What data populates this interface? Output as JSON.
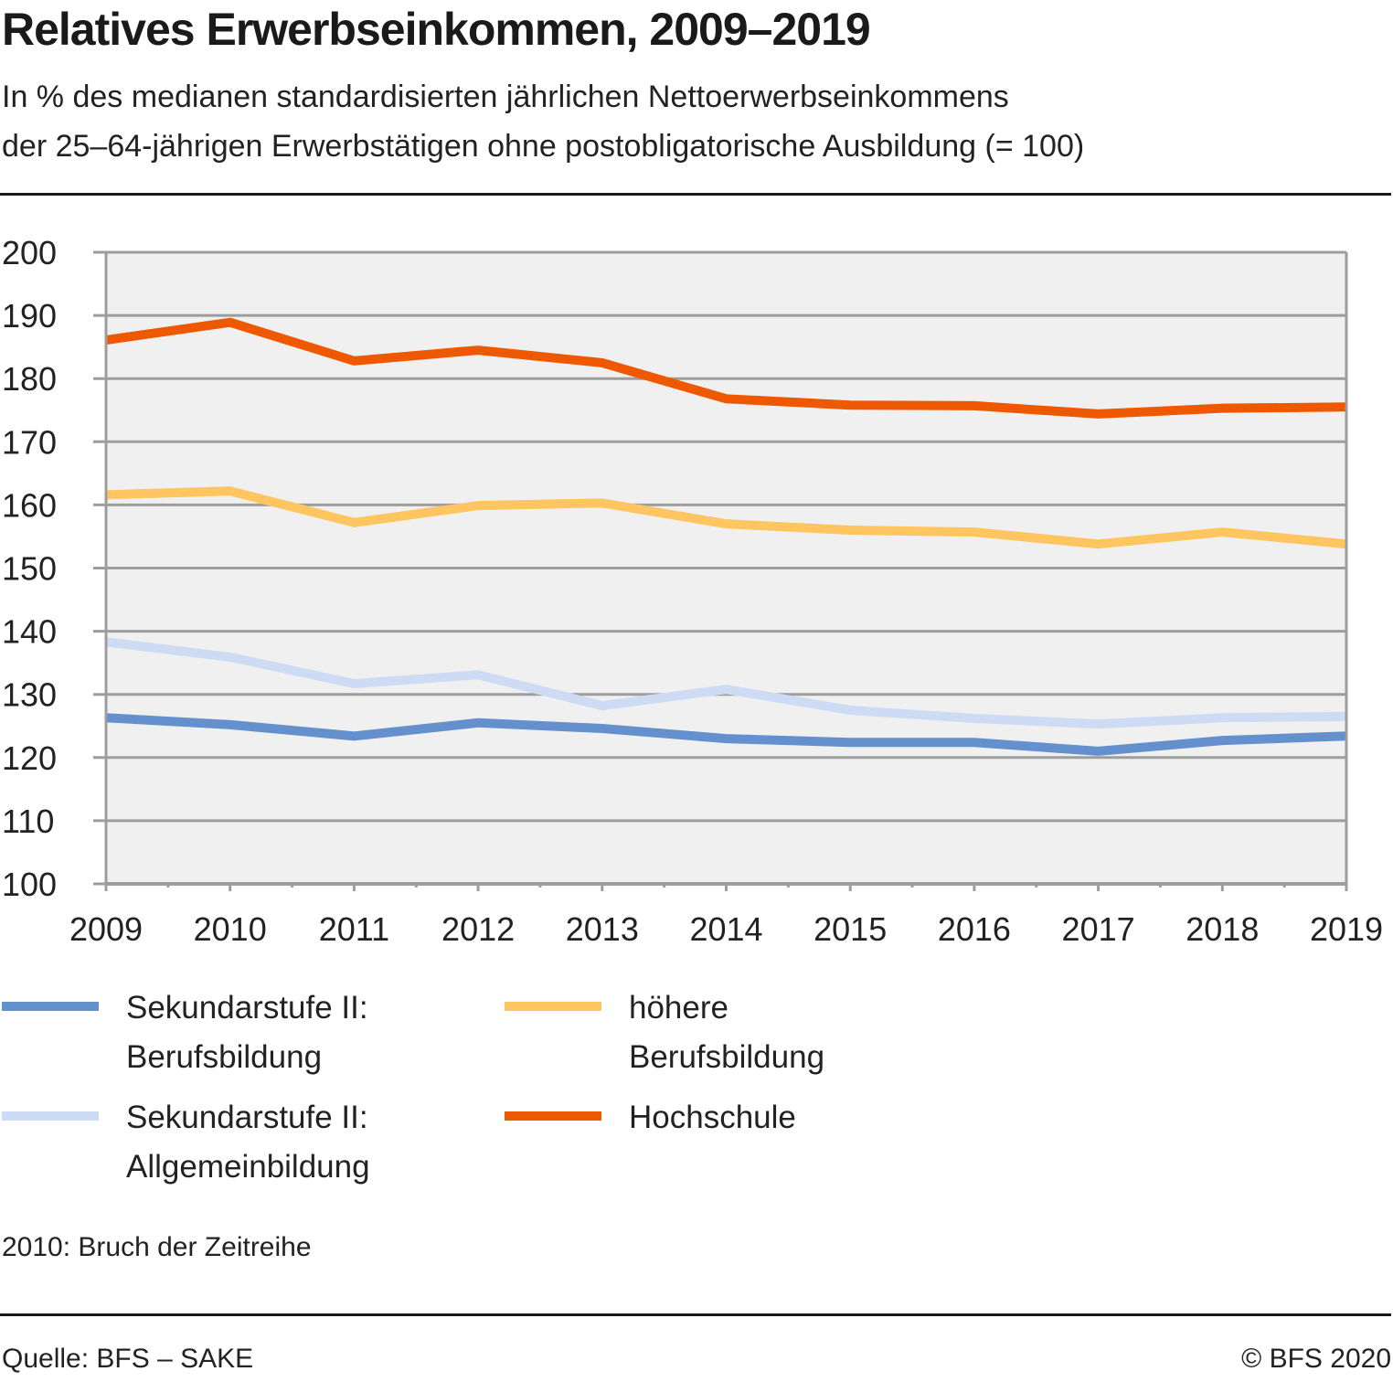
{
  "header": {
    "title": "Relatives Erwerbseinkommen, 2009–2019",
    "subtitle_line1": "In % des medianen standardisierten jährlichen Nettoerwerbseinkommens",
    "subtitle_line2": "der 25–64-jährigen Erwerbstätigen ohne postobligatorische Ausbildung (= 100)"
  },
  "legend": [
    {
      "label": "Sekundarstufe II:\nBerufsbildung",
      "color": "#6490cd"
    },
    {
      "label": "höhere\nBerufsbildung",
      "color": "#ffc561"
    },
    {
      "label": "Sekundarstufe II:\nAllgemeinbildung",
      "color": "#cddcf4"
    },
    {
      "label": "Hochschule",
      "color": "#ee5800"
    }
  ],
  "footer": {
    "note": "2010: Bruch der Zeitreihe",
    "source": "Quelle: BFS – SAKE",
    "copyright": "© BFS 2020"
  },
  "chart_data": {
    "type": "line",
    "title": "Relatives Erwerbseinkommen, 2009–2019",
    "subtitle": "In % des medianen standardisierten jährlichen Nettoerwerbseinkommens der 25–64-jährigen Erwerbstätigen ohne postobligatorische Ausbildung (= 100)",
    "xlabel": "",
    "ylabel": "",
    "x": [
      "2009",
      "2010",
      "2011",
      "2012",
      "2013",
      "2014",
      "2015",
      "2016",
      "2017",
      "2018",
      "2019"
    ],
    "ylim": [
      100,
      200
    ],
    "yticks": [
      100,
      110,
      120,
      130,
      140,
      150,
      160,
      170,
      180,
      190,
      200
    ],
    "grid": true,
    "legend_position": "bottom",
    "series": [
      {
        "name": "Sekundarstufe II: Berufsbildung",
        "color": "#6490cd",
        "values": [
          126.3,
          125.2,
          123.4,
          125.5,
          124.6,
          123.0,
          122.4,
          122.4,
          121.0,
          122.7,
          123.4
        ]
      },
      {
        "name": "Sekundarstufe II: Allgemeinbildung",
        "color": "#cddcf4",
        "values": [
          138.3,
          135.9,
          131.7,
          133.1,
          128.2,
          130.8,
          127.5,
          126.2,
          125.3,
          126.3,
          126.5
        ]
      },
      {
        "name": "höhere Berufsbildung",
        "color": "#ffc561",
        "values": [
          161.6,
          162.2,
          157.2,
          159.9,
          160.3,
          157.0,
          156.0,
          155.7,
          153.8,
          155.7,
          153.8
        ]
      },
      {
        "name": "Hochschule",
        "color": "#ee5800",
        "values": [
          186.1,
          188.9,
          182.8,
          184.5,
          182.5,
          176.8,
          175.8,
          175.7,
          174.4,
          175.3,
          175.5
        ]
      }
    ]
  }
}
